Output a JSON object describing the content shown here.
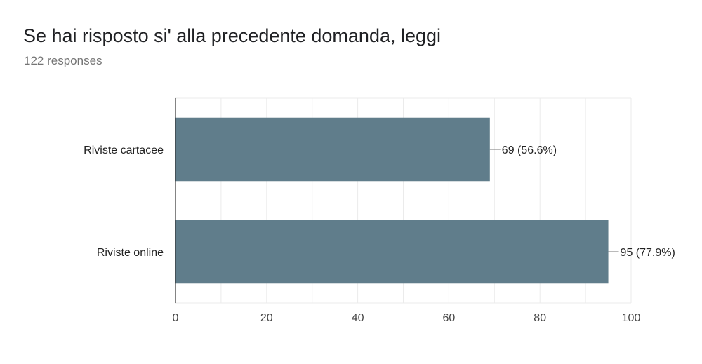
{
  "header": {
    "title": "Se hai risposto si' alla precedente domanda, leggi",
    "subtitle": "122 responses"
  },
  "colors": {
    "bar": "#607d8b",
    "grid": "#ebebeb",
    "axis": "#333333",
    "leader": "#757575"
  },
  "chart_data": {
    "type": "bar",
    "orientation": "horizontal",
    "title": "Se hai risposto si' alla precedente domanda, leggi",
    "subtitle": "122 responses",
    "categories": [
      "Riviste cartacee",
      "Riviste online"
    ],
    "values": [
      69,
      95
    ],
    "data_labels": [
      "69 (56.6%)",
      "95 (77.9%)"
    ],
    "xlim": [
      0,
      100
    ],
    "xticks": [
      0,
      20,
      40,
      60,
      80,
      100
    ],
    "xlabel": "",
    "ylabel": "",
    "grid": true,
    "legend": "none"
  }
}
